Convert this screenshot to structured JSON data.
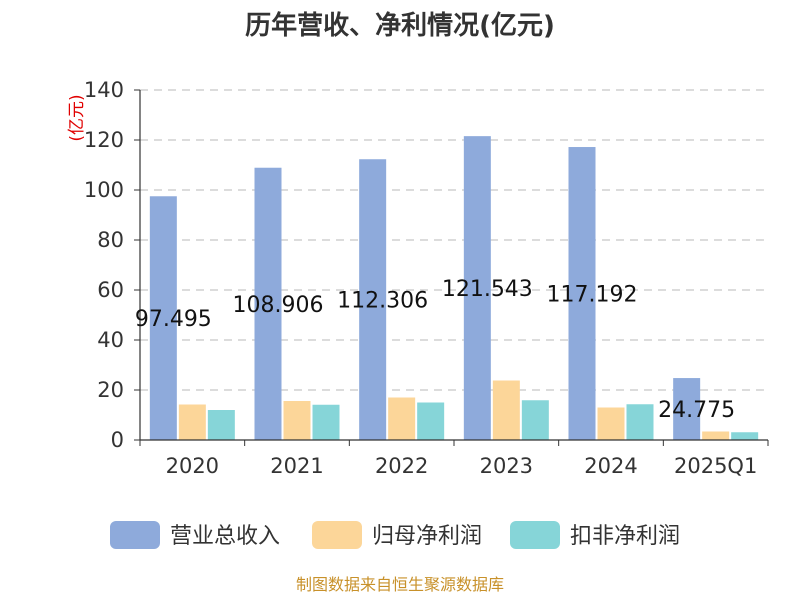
{
  "chart_data": {
    "type": "bar",
    "title": "历年营收、净利情况(亿元)",
    "ylabel": "(亿元)",
    "categories": [
      "2020",
      "2021",
      "2022",
      "2023",
      "2024",
      "2025Q1"
    ],
    "ylim": [
      0,
      140
    ],
    "yticks": [
      "0",
      "20",
      "40",
      "60",
      "80",
      "100",
      "120",
      "140"
    ],
    "grid": true,
    "legend_position": "bottom",
    "series": [
      {
        "name": "营业总收入",
        "color": "#8eaadb",
        "values": [
          97.495,
          108.906,
          112.306,
          121.543,
          117.192,
          24.775
        ]
      },
      {
        "name": "归母净利润",
        "color": "#fcd699",
        "values": [
          14.2,
          15.6,
          17.0,
          23.8,
          13.0,
          3.4
        ]
      },
      {
        "name": "扣非净利润",
        "color": "#86d5d8",
        "values": [
          12.0,
          14.1,
          15.0,
          15.9,
          14.3,
          3.1
        ]
      }
    ],
    "data_labels": [
      "97.495",
      "108.906",
      "112.306",
      "121.543",
      "117.192",
      "24.775"
    ]
  },
  "source_note": "制图数据来自恒生聚源数据库"
}
